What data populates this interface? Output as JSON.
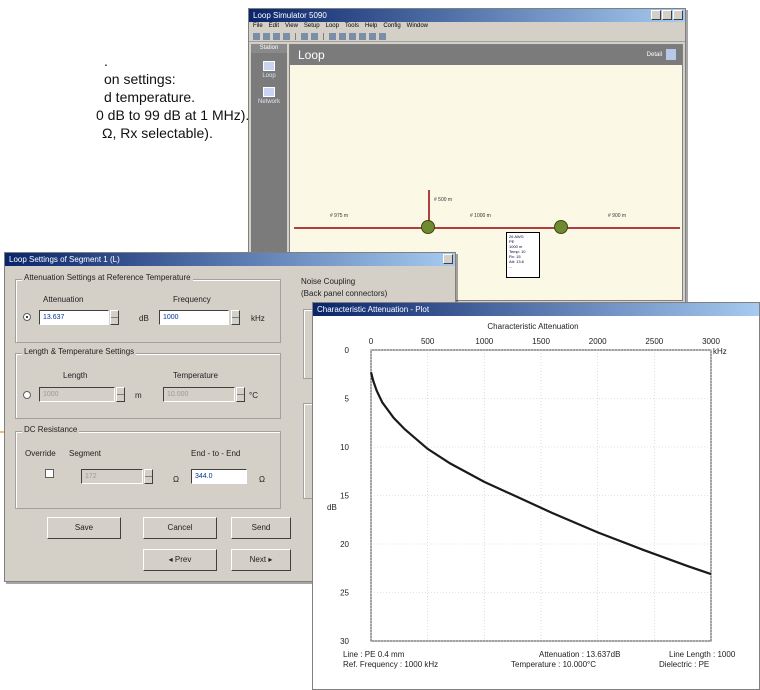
{
  "background_text": {
    "line1": ".",
    "line2": "on settings:",
    "line3": "d temperature.",
    "line4": "0 dB to 99 dB at 1 MHz).",
    "line5": "Ω, Rx selectable)."
  },
  "main_window": {
    "title": "Loop Simulator 5090",
    "menu": [
      "File",
      "Edit",
      "View",
      "Setup",
      "Loop",
      "Tools",
      "Help",
      "Config",
      "Window"
    ],
    "sidebar": {
      "header": "Station",
      "items": [
        {
          "label": "Loop",
          "icon": "loop-icon"
        },
        {
          "label": "Network",
          "icon": "network-icon"
        }
      ]
    },
    "loop": {
      "heading": "Loop",
      "detail_label": "Detail",
      "segments": [
        {
          "label": "# 975 m"
        },
        {
          "label": "# 500 m"
        },
        {
          "label": "# 1000 m"
        },
        {
          "label": "# 900 m"
        }
      ],
      "popup_lines": [
        "26 AWG",
        "PE",
        "1000 m",
        "Temp: 10",
        "Rx: 15",
        "Att: 13.6",
        "..."
      ]
    }
  },
  "dialog": {
    "title": "Loop Settings of Segment 1 (L)",
    "attenuation_group": "Attenuation Settings at Reference Temperature",
    "attenuation_label": "Attenuation",
    "attenuation_value": "13.637",
    "attenuation_unit": "dB",
    "frequency_label": "Frequency",
    "frequency_value": "1000",
    "frequency_unit": "kHz",
    "length_group": "Length & Temperature Settings",
    "length_label": "Length",
    "length_value": "1000",
    "length_unit": "m",
    "temperature_label": "Temperature",
    "temperature_value": "10.000",
    "temperature_unit": "°C",
    "dc_group": "DC Resistance",
    "override_label": "Override",
    "segment_label": "Segment",
    "segment_value": "172",
    "segment_unit": "Ω",
    "end_label": "End - to - End",
    "end_value": "344.0",
    "end_unit": "Ω",
    "noise_group": "Noise Coupling",
    "noise_sub": "(Back panel connectors)",
    "buttons": {
      "save": "Save",
      "cancel": "Cancel",
      "send": "Send",
      "prev": "◂ Prev",
      "next": "Next ▸"
    }
  },
  "chart_window": {
    "title": "Characteristic Attenuation - Plot",
    "footer_left1": "Line : PE 0.4 mm",
    "footer_left2": "Ref. Frequency : 1000 kHz",
    "footer_mid1": "Attenuation : 13.637dB",
    "footer_mid2": "Temperature : 10.000°C",
    "footer_right1": "Line Length : 1000",
    "footer_right2": "Dielectric : PE"
  },
  "chart_data": {
    "type": "line",
    "title": "Characteristic Attenuation",
    "xlabel": "kHz",
    "ylabel": "dB",
    "xlim": [
      0,
      3000
    ],
    "ylim": [
      0,
      30
    ],
    "x_ticks": [
      0,
      500,
      1000,
      1500,
      2000,
      2500,
      3000
    ],
    "y_ticks": [
      0,
      5,
      10,
      15,
      20,
      25,
      30
    ],
    "grid": true,
    "series": [
      {
        "x": [
          0,
          20,
          50,
          100,
          200,
          300,
          500,
          700,
          1000,
          1300,
          1600,
          2000,
          2400,
          2800,
          3000
        ],
        "values": [
          2.3,
          3.2,
          4.2,
          5.4,
          7.0,
          8.2,
          10.2,
          11.7,
          13.6,
          15.2,
          16.8,
          18.8,
          20.6,
          22.3,
          23.1
        ]
      }
    ]
  }
}
